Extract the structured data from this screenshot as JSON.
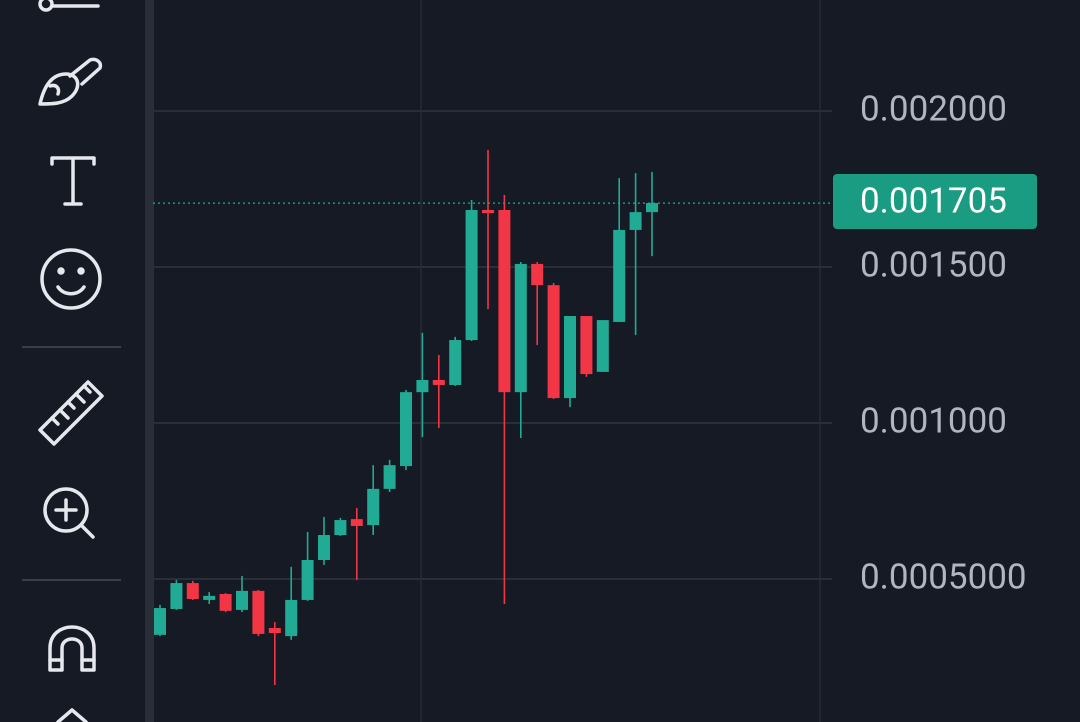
{
  "chart_data": {
    "type": "candlestick",
    "ylim": [
      4.17e-05,
      0.002356
    ],
    "yticks": [
      {
        "value": 0.002,
        "label": "0.002000"
      },
      {
        "value": 0.0015,
        "label": "0.001500"
      },
      {
        "value": 0.001,
        "label": "0.001000"
      },
      {
        "value": 0.0005,
        "label": "0.0005000"
      }
    ],
    "grid": true,
    "last_price": 0.001705,
    "up_color": "#22ab94",
    "down_color": "#f23645",
    "open": [
      0.000321,
      0.000404,
      0.000487,
      0.000433,
      0.000452,
      0.000401,
      0.000462,
      0.000343,
      0.000317,
      0.000433,
      0.000561,
      0.000641,
      0.000692,
      0.000673,
      0.000789,
      0.000862,
      0.001099,
      0.001138,
      0.001122,
      0.001266,
      0.001683,
      0.001683,
      0.001099,
      0.00151,
      0.001442,
      0.00108,
      0.001343,
      0.001164,
      0.001324,
      0.001619,
      0.001676
    ],
    "high": [
      0.000417,
      0.000497,
      0.000494,
      0.000458,
      0.000455,
      0.00051,
      0.000465,
      0.000362,
      0.000539,
      0.000651,
      0.000699,
      0.000696,
      0.000728,
      0.000865,
      0.000882,
      0.001106,
      0.001289,
      0.001218,
      0.001276,
      0.001715,
      0.001875,
      0.001731,
      0.001516,
      0.001516,
      0.001449,
      0.001343,
      0.001343,
      0.00133,
      0.001785,
      0.001801,
      0.001805
    ],
    "low": [
      0.000317,
      0.000401,
      0.000433,
      0.00042,
      0.000394,
      0.000394,
      0.000317,
      0.00016,
      0.000305,
      0.00043,
      0.000545,
      0.000638,
      0.000497,
      0.000641,
      0.000779,
      0.000849,
      0.000955,
      0.000984,
      0.001119,
      0.001263,
      0.001365,
      0.00042,
      0.000952,
      0.00125,
      0.001077,
      0.001051,
      0.001148,
      0.001164,
      0.001324,
      0.001282,
      0.001535
    ],
    "close": [
      0.000407,
      0.000487,
      0.000436,
      0.000446,
      0.000398,
      0.000462,
      0.000324,
      0.000327,
      0.000433,
      0.000561,
      0.000641,
      0.000689,
      0.00067,
      0.000789,
      0.000865,
      0.001099,
      0.001138,
      0.001122,
      0.001266,
      0.001683,
      0.001673,
      0.001099,
      0.00151,
      0.001442,
      0.00108,
      0.001343,
      0.001157,
      0.00133,
      0.001619,
      0.001676,
      0.001705
    ]
  }
}
